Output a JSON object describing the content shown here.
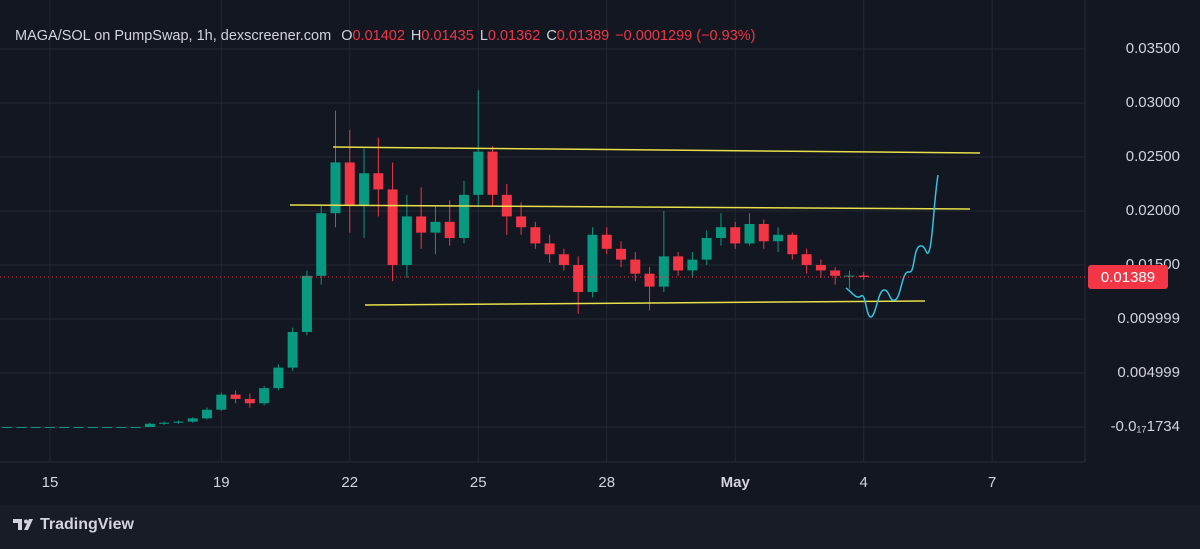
{
  "chart_data": {
    "type": "candlestick",
    "title": "MAGA/SOL on PumpSwap, 1h, dexscreener.com",
    "legend": {
      "o_label": "O",
      "open": 0.01402,
      "h_label": "H",
      "high": 0.01435,
      "l_label": "L",
      "low": 0.01362,
      "c_label": "C",
      "close": 0.01389,
      "change": "−0.0001299 (−0.93%)"
    },
    "last_price": 0.01389,
    "brand": "TradingView",
    "up_color": "#089981",
    "down_color": "#f23645",
    "grid": true,
    "categories": [
      null,
      null,
      null,
      "15",
      null,
      null,
      null,
      null,
      null,
      null,
      null,
      null,
      null,
      null,
      null,
      "19",
      null,
      null,
      null,
      null,
      null,
      null,
      null,
      null,
      "22",
      null,
      null,
      null,
      null,
      null,
      null,
      null,
      null,
      "25",
      null,
      null,
      null,
      null,
      null,
      null,
      null,
      null,
      "28",
      null,
      null,
      null,
      null,
      null,
      null,
      null,
      null,
      "May",
      null,
      null,
      null,
      null,
      null,
      null,
      null,
      null,
      "4",
      null,
      null,
      null,
      null,
      null,
      null,
      null,
      null,
      "7",
      null,
      null,
      null,
      null,
      null,
      null
    ],
    "open": [
      0,
      0,
      0,
      0,
      0,
      0,
      0,
      0,
      0,
      0,
      0,
      0.0003,
      0.0004,
      0.0005,
      0.0008,
      0.0016,
      0.003,
      0.0026,
      0.0022,
      0.0036,
      0.0055,
      0.0088,
      0.014,
      0.0198,
      0.0245,
      0.0205,
      0.0235,
      0.022,
      0.015,
      0.0195,
      0.018,
      0.019,
      0.0175,
      0.0215,
      0.0255,
      0.0215,
      0.0195,
      0.0185,
      0.017,
      0.016,
      0.015,
      0.0125,
      0.0178,
      0.0165,
      0.0155,
      0.0142,
      0.013,
      0.0158,
      0.0145,
      0.0155,
      0.0175,
      0.0185,
      0.017,
      0.0188,
      0.0172,
      0.0178,
      0.016,
      0.015,
      0.0145,
      0.014,
      0.01402,
      null,
      null,
      null,
      null,
      null,
      null,
      null,
      null,
      null,
      null,
      null,
      null,
      null,
      null,
      null
    ],
    "high": [
      0,
      0,
      0,
      0,
      0,
      0,
      0,
      0,
      0,
      0,
      0.0004,
      0.0005,
      0.0006,
      0.0009,
      0.0018,
      0.0032,
      0.0034,
      0.0031,
      0.0038,
      0.0058,
      0.0092,
      0.0145,
      0.0205,
      0.0293,
      0.0275,
      0.0258,
      0.0268,
      0.0245,
      0.0215,
      0.0222,
      0.0205,
      0.021,
      0.0228,
      0.0312,
      0.026,
      0.0225,
      0.0208,
      0.019,
      0.0178,
      0.0165,
      0.0158,
      0.0185,
      0.0185,
      0.0172,
      0.0162,
      0.0148,
      0.02,
      0.0162,
      0.0162,
      0.0182,
      0.0198,
      0.019,
      0.0198,
      0.0192,
      0.0185,
      0.018,
      0.0165,
      0.0155,
      0.0148,
      0.0145,
      0.01435,
      null,
      null,
      null,
      null,
      null,
      null,
      null,
      null,
      null,
      null,
      null,
      null,
      null,
      null,
      null
    ],
    "low": [
      0,
      0,
      0,
      0,
      0,
      0,
      0,
      0,
      0,
      0,
      0,
      0.0002,
      0.0003,
      0.0004,
      0.0007,
      0.0015,
      0.0022,
      0.0018,
      0.002,
      0.0034,
      0.0052,
      0.0085,
      0.0132,
      0.0185,
      0.018,
      0.0175,
      0.0195,
      0.0135,
      0.0138,
      0.0165,
      0.016,
      0.0168,
      0.017,
      0.0205,
      0.0205,
      0.0178,
      0.0178,
      0.0165,
      0.0152,
      0.0145,
      0.0105,
      0.012,
      0.016,
      0.0148,
      0.0135,
      0.0108,
      0.0125,
      0.014,
      0.0138,
      0.015,
      0.0168,
      0.0165,
      0.0168,
      0.0165,
      0.0162,
      0.0155,
      0.0142,
      0.0138,
      0.0132,
      0.0128,
      0.01362,
      null,
      null,
      null,
      null,
      null,
      null,
      null,
      null,
      null,
      null,
      null,
      null,
      null,
      null,
      null
    ],
    "close": [
      0,
      0,
      0,
      0,
      0,
      0,
      0,
      0,
      0,
      0,
      0.0003,
      0.0004,
      0.0005,
      0.0008,
      0.0016,
      0.003,
      0.0026,
      0.0022,
      0.0036,
      0.0055,
      0.0088,
      0.014,
      0.0198,
      0.0245,
      0.0205,
      0.0235,
      0.022,
      0.015,
      0.0195,
      0.018,
      0.019,
      0.0175,
      0.0215,
      0.0255,
      0.0215,
      0.0195,
      0.0185,
      0.017,
      0.016,
      0.015,
      0.0125,
      0.0178,
      0.0165,
      0.0155,
      0.0142,
      0.013,
      0.0158,
      0.0145,
      0.0155,
      0.0175,
      0.0185,
      0.017,
      0.0188,
      0.0172,
      0.0178,
      0.016,
      0.015,
      0.0145,
      0.014,
      0.01402,
      0.01389,
      null,
      null,
      null,
      null,
      null,
      null,
      null,
      null,
      null,
      null,
      null,
      null,
      null,
      null,
      null
    ],
    "ylim": [
      -0.00324,
      0.03843
    ],
    "yticks": [
      {
        "value": 0.035,
        "label": "0.03500"
      },
      {
        "value": 0.03,
        "label": "0.03000"
      },
      {
        "value": 0.025,
        "label": "0.02500"
      },
      {
        "value": 0.02,
        "label": "0.02000"
      },
      {
        "value": 0.015,
        "label": "0.01500"
      },
      {
        "value": 0.009999,
        "label": "0.009999"
      },
      {
        "value": 0.004999,
        "label": "0.004999"
      },
      {
        "value": -1.734e-18,
        "label": "-0.0₁₇1734"
      }
    ]
  }
}
